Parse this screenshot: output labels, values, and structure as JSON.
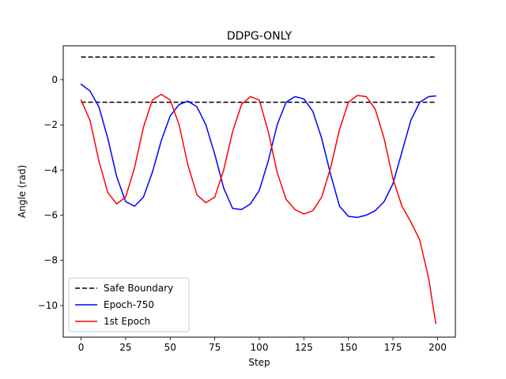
{
  "chart_data": {
    "type": "line",
    "title": "DDPG-ONLY",
    "xlabel": "Step",
    "ylabel": "Angle (rad)",
    "xlim": [
      -10,
      210
    ],
    "ylim": [
      -11.4,
      1.5
    ],
    "x_ticks": [
      0,
      25,
      50,
      75,
      100,
      125,
      150,
      175,
      200
    ],
    "y_ticks": [
      0,
      -2,
      -4,
      -6,
      -8,
      -10
    ],
    "grid": false,
    "legend": {
      "placement": "lower-left"
    },
    "boundaries": {
      "name": "Safe Boundary",
      "color": "#000000",
      "style": "dashed",
      "x_range": [
        0,
        199
      ],
      "values": [
        1,
        -1
      ]
    },
    "series": [
      {
        "name": "Epoch-750",
        "color": "#0000ff",
        "x": [
          0,
          5,
          10,
          15,
          20,
          25,
          30,
          35,
          40,
          45,
          50,
          55,
          60,
          65,
          70,
          75,
          80,
          85,
          90,
          95,
          100,
          105,
          110,
          115,
          120,
          125,
          130,
          135,
          140,
          145,
          150,
          155,
          160,
          165,
          170,
          175,
          180,
          185,
          190,
          195,
          199
        ],
        "y": [
          -0.2,
          -0.5,
          -1.2,
          -2.6,
          -4.3,
          -5.4,
          -5.6,
          -5.2,
          -4.1,
          -2.7,
          -1.6,
          -1.1,
          -0.95,
          -1.2,
          -2.0,
          -3.3,
          -4.8,
          -5.7,
          -5.75,
          -5.5,
          -4.9,
          -3.6,
          -2.0,
          -1.0,
          -0.75,
          -0.85,
          -1.4,
          -2.6,
          -4.2,
          -5.6,
          -6.05,
          -6.1,
          -6.0,
          -5.8,
          -5.4,
          -4.6,
          -3.2,
          -1.8,
          -1.0,
          -0.75,
          -0.72
        ]
      },
      {
        "name": "1st Epoch",
        "color": "#ff0000",
        "x": [
          0,
          5,
          10,
          15,
          20,
          25,
          30,
          35,
          40,
          45,
          50,
          55,
          60,
          65,
          70,
          75,
          80,
          85,
          90,
          95,
          100,
          105,
          110,
          115,
          120,
          125,
          130,
          135,
          140,
          145,
          150,
          155,
          160,
          165,
          170,
          175,
          180,
          185,
          190,
          195,
          199
        ],
        "y": [
          -0.9,
          -1.8,
          -3.6,
          -5.0,
          -5.5,
          -5.2,
          -3.9,
          -2.1,
          -0.9,
          -0.65,
          -0.9,
          -2.0,
          -3.8,
          -5.1,
          -5.45,
          -5.2,
          -4.0,
          -2.3,
          -1.1,
          -0.75,
          -0.9,
          -2.3,
          -4.1,
          -5.3,
          -5.75,
          -5.95,
          -5.8,
          -5.2,
          -3.9,
          -2.2,
          -1.0,
          -0.7,
          -0.75,
          -1.3,
          -2.6,
          -4.4,
          -5.6,
          -6.3,
          -7.1,
          -8.8,
          -10.8
        ]
      }
    ]
  }
}
